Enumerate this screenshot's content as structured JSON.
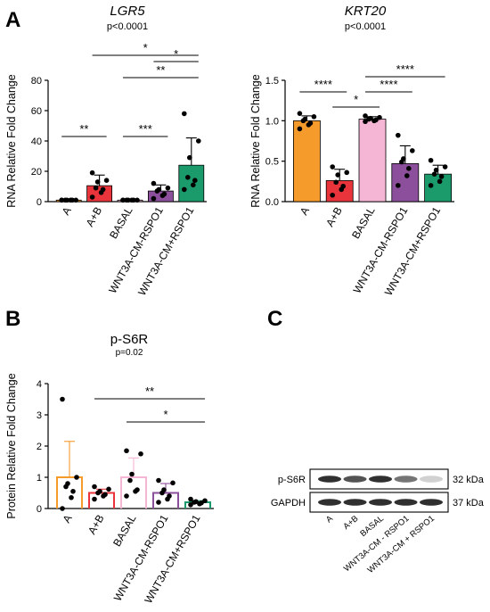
{
  "panels": [
    {
      "letter": "A"
    },
    {
      "letter": "B"
    },
    {
      "letter": "C"
    }
  ],
  "colors": {
    "A": "#f59b2b",
    "A+B": "#e8343a",
    "BASAL": "#f5b5d4",
    "WNT3A-CM-RSPO1": "#8b4f9b",
    "WNT3A-CM+RSPO1": "#1b9a6c"
  },
  "chart_data": [
    {
      "type": "bar",
      "title": "LGR5",
      "subtitle": "p<0.0001",
      "ylabel": "RNA Relative Fold Change",
      "categories": [
        "A",
        "A+B",
        "BASAL",
        "WNT3A-CM-RSPO1",
        "WNT3A-CM+RSPO1"
      ],
      "values": [
        1,
        10.5,
        1,
        7,
        24
      ],
      "errors": [
        0.2,
        7,
        0.2,
        4,
        18
      ],
      "ylim": [
        0,
        80
      ],
      "yticks": [
        "0",
        "20",
        "40",
        "60",
        "80"
      ],
      "points": [
        [
          1,
          1,
          1,
          1,
          1,
          1,
          1
        ],
        [
          3,
          6,
          8,
          9,
          13,
          14,
          19
        ],
        [
          1,
          1,
          1,
          1,
          1,
          1,
          1
        ],
        [
          2,
          4,
          5,
          7,
          8,
          9,
          12
        ],
        [
          8,
          11,
          14,
          16,
          29,
          40,
          58
        ]
      ],
      "comparisons": [
        {
          "from": 0,
          "to": 1,
          "label": "**"
        },
        {
          "from": 1,
          "to": 4,
          "label": "*"
        },
        {
          "from": 3,
          "to": 4,
          "label": "*"
        },
        {
          "from": 2,
          "to": 4,
          "label": "**"
        },
        {
          "from": 2,
          "to": 3,
          "label": "***"
        }
      ]
    },
    {
      "type": "bar",
      "title": "KRT20",
      "subtitle": "p<0.0001",
      "ylabel": "RNA Relative Fold Change",
      "categories": [
        "A",
        "A+B",
        "BASAL",
        "WNT3A-CM-RSPO1",
        "WNT3A-CM+RSPO1"
      ],
      "values": [
        1.0,
        0.26,
        1.02,
        0.47,
        0.34
      ],
      "errors": [
        0.06,
        0.14,
        0.03,
        0.22,
        0.11
      ],
      "ylim": [
        0,
        1.5
      ],
      "yticks": [
        "0.0",
        "0.5",
        "1.0",
        "1.5"
      ],
      "points": [
        [
          0.9,
          0.95,
          0.97,
          1.0,
          1.02,
          1.05,
          1.09
        ],
        [
          0.08,
          0.15,
          0.19,
          0.24,
          0.33,
          0.36,
          0.43
        ],
        [
          0.99,
          1.0,
          1.01,
          1.02,
          1.03,
          1.04,
          1.06
        ],
        [
          0.2,
          0.32,
          0.41,
          0.49,
          0.53,
          0.63,
          0.82
        ],
        [
          0.2,
          0.25,
          0.31,
          0.34,
          0.39,
          0.43,
          0.51
        ]
      ],
      "comparisons": [
        {
          "from": 0,
          "to": 1,
          "label": "****"
        },
        {
          "from": 1,
          "to": 2,
          "label": "*"
        },
        {
          "from": 2,
          "to": 3,
          "label": "****"
        },
        {
          "from": 2,
          "to": 4,
          "label": "****"
        }
      ]
    },
    {
      "type": "bar",
      "title": "p-S6R",
      "subtitle": "p=0.02",
      "ylabel": "Protein Relative Fold Change",
      "categories": [
        "A",
        "A+B",
        "BASAL",
        "WNT3A-CM-RSPO1",
        "WNT3A-CM+RSPO1"
      ],
      "values": [
        1.0,
        0.5,
        1.0,
        0.5,
        0.2
      ],
      "errors": [
        1.15,
        0.12,
        0.62,
        0.3,
        0.05
      ],
      "ylim": [
        0,
        4
      ],
      "yticks": [
        "0",
        "1",
        "2",
        "3",
        "4"
      ],
      "hollow": true,
      "points": [
        [
          0.0,
          0.35,
          0.55,
          0.7,
          0.8,
          1.0,
          3.5
        ],
        [
          0.3,
          0.4,
          0.45,
          0.5,
          0.55,
          0.62,
          0.7
        ],
        [
          0.4,
          0.55,
          0.6,
          0.9,
          1.1,
          1.75,
          1.85
        ],
        [
          0.2,
          0.3,
          0.4,
          0.5,
          0.6,
          0.82,
          0.9
        ],
        [
          0.12,
          0.15,
          0.18,
          0.2,
          0.22,
          0.25,
          0.3
        ]
      ],
      "comparisons": [
        {
          "from": 1,
          "to": 4,
          "label": "**"
        },
        {
          "from": 2,
          "to": 4,
          "label": "*"
        }
      ]
    }
  ],
  "blot": {
    "rows": [
      {
        "label": "p-S6R",
        "kda": "32 kDa",
        "intensities": [
          0.9,
          0.75,
          0.9,
          0.6,
          0.2
        ]
      },
      {
        "label": "GAPDH",
        "kda": "37 kDa",
        "intensities": [
          0.9,
          0.9,
          0.9,
          0.9,
          0.9
        ]
      }
    ],
    "lanes": [
      "A",
      "A+B",
      "BASAL",
      "WNT3A-CM - RSPO1",
      "WNT3A-CM + RSPO1"
    ]
  }
}
